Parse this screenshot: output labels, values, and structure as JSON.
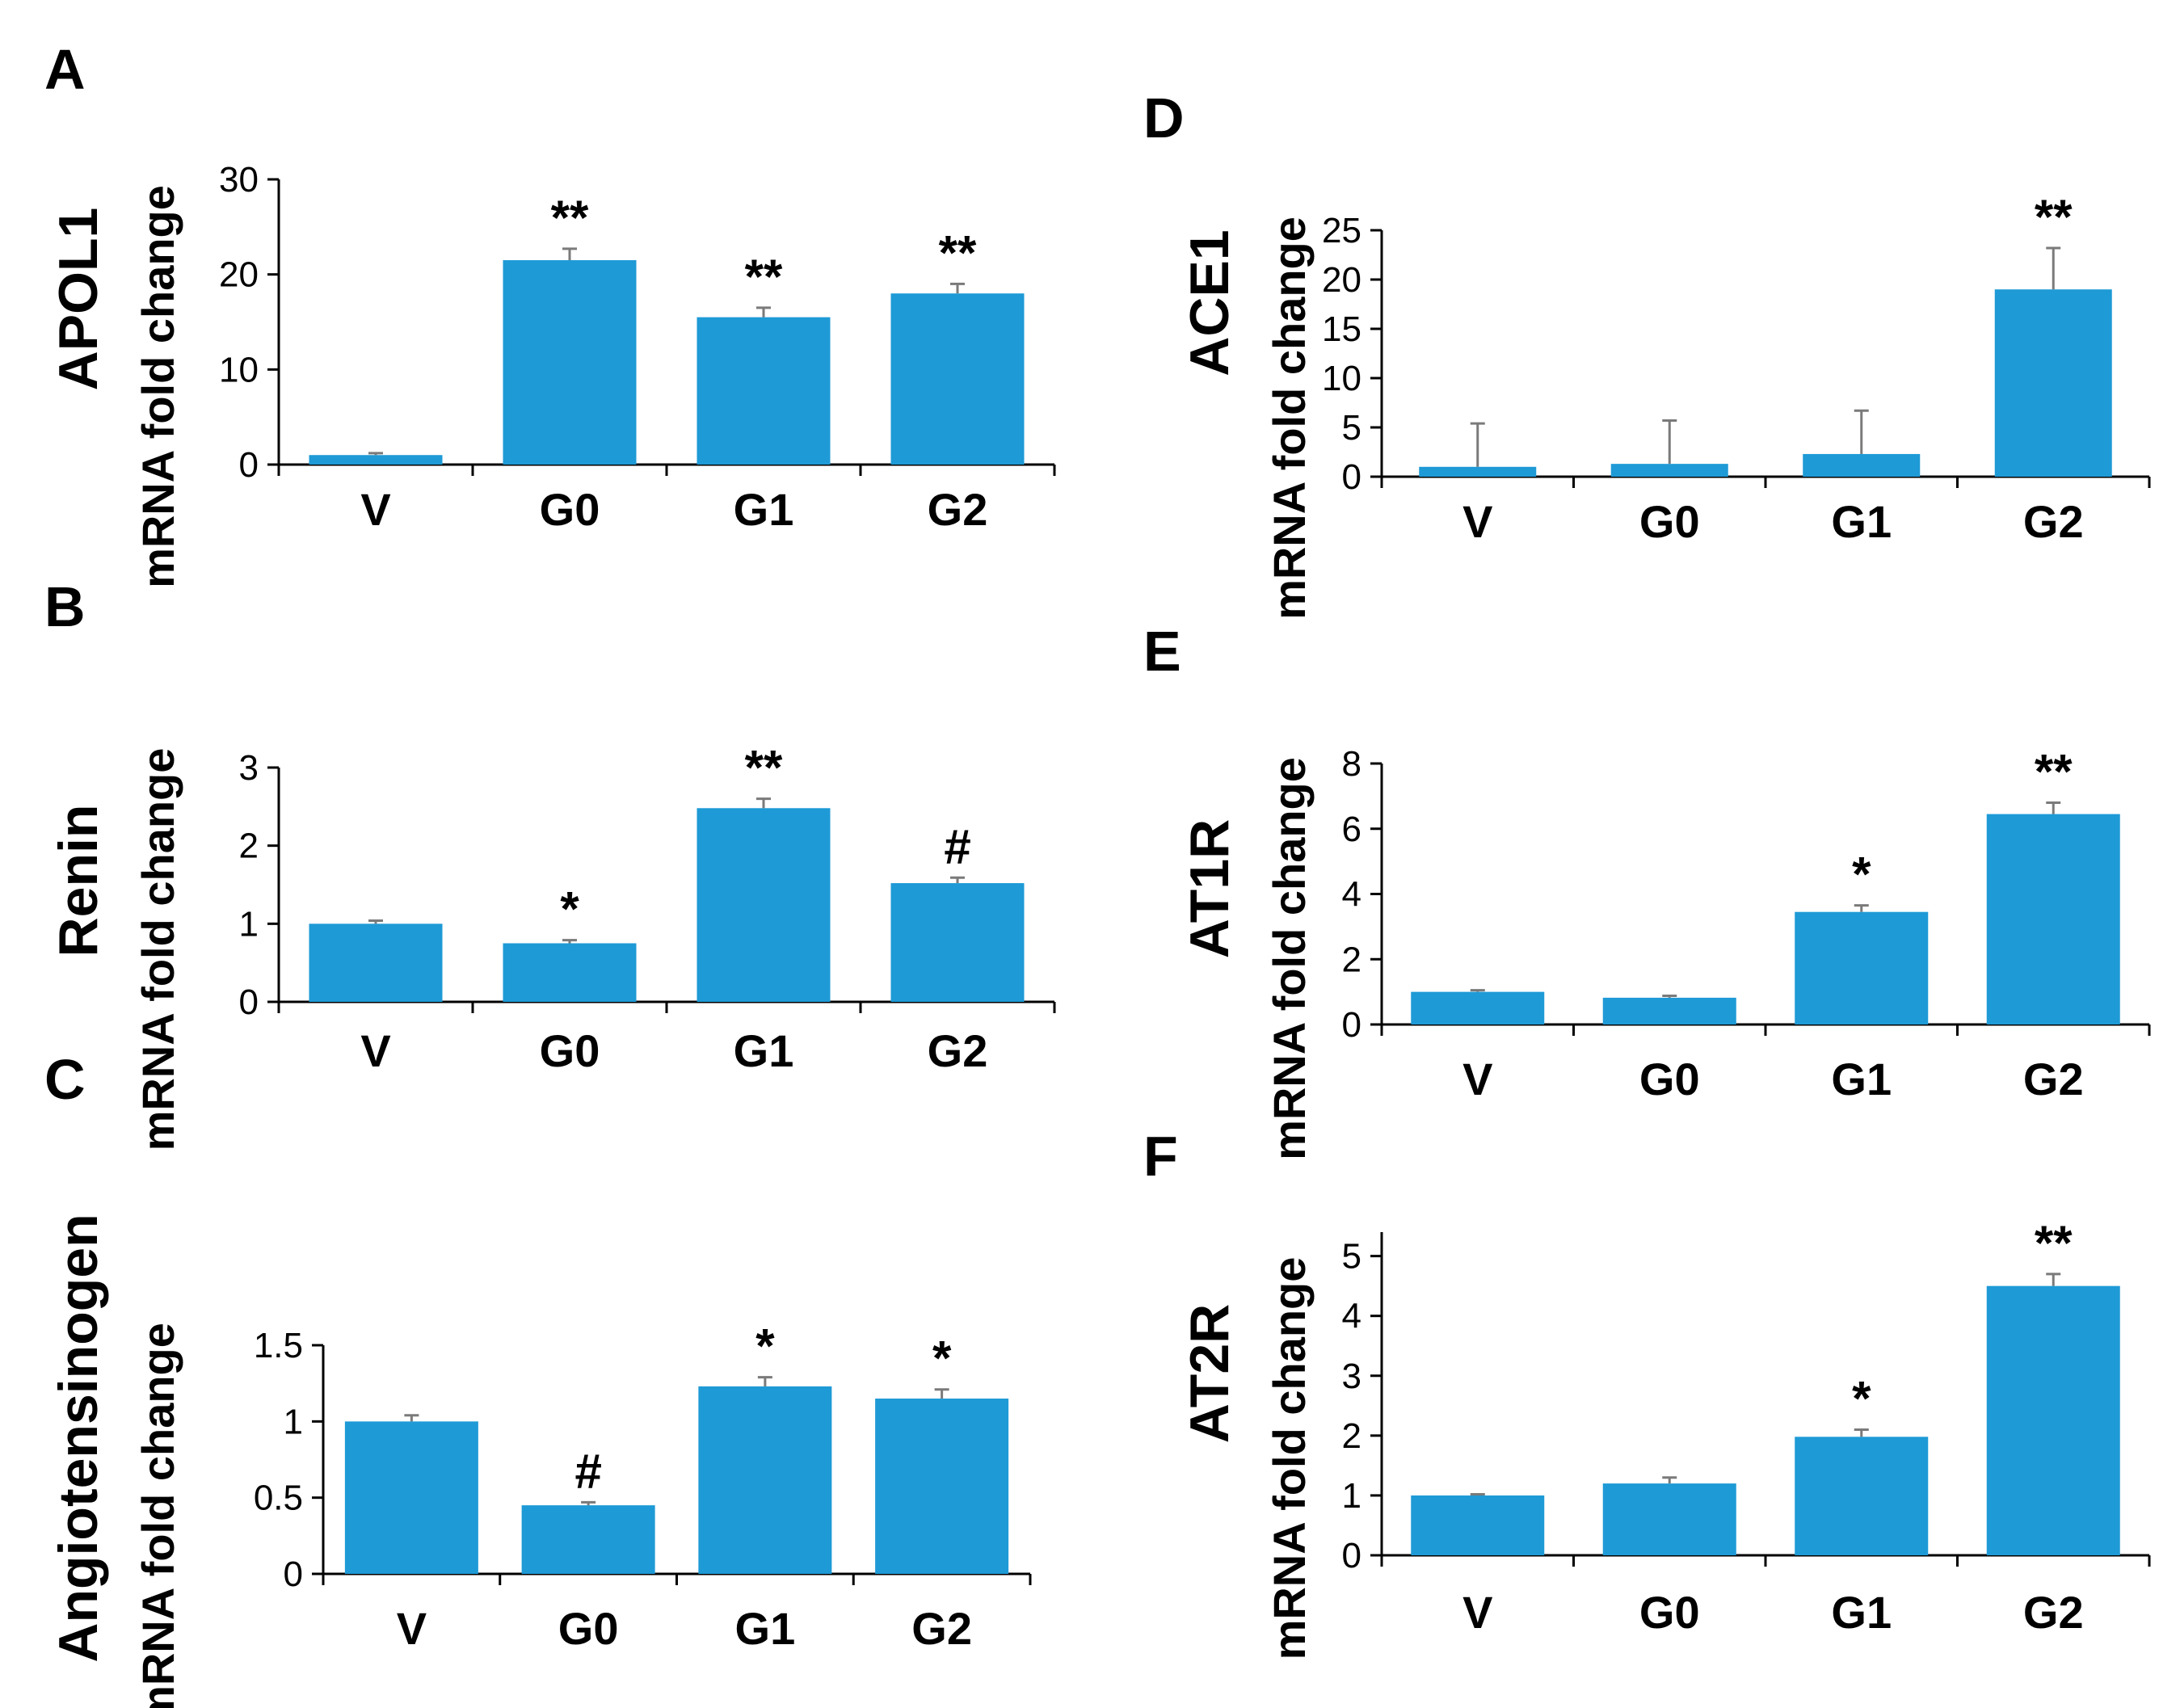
{
  "chart_data": [
    {
      "panel": "A",
      "type": "bar",
      "gene": "APOL1",
      "ylabel": "mRNA fold change",
      "categories": [
        "V",
        "G0",
        "G1",
        "G2"
      ],
      "values": [
        1,
        21.5,
        15.5,
        18
      ],
      "errors": [
        0.2,
        1.2,
        1.0,
        1.0
      ],
      "significance": [
        "",
        "**",
        "**",
        "**"
      ],
      "yticks": [
        0,
        10,
        20,
        30
      ],
      "ylim": [
        0,
        30
      ]
    },
    {
      "panel": "B",
      "type": "bar",
      "gene": "Renin",
      "ylabel": "mRNA fold change",
      "categories": [
        "V",
        "G0",
        "G1",
        "G2"
      ],
      "values": [
        1,
        0.75,
        2.48,
        1.52
      ],
      "errors": [
        0.04,
        0.04,
        0.12,
        0.07
      ],
      "significance": [
        "",
        "*",
        "**",
        "#"
      ],
      "yticks": [
        0,
        1,
        2,
        3
      ],
      "ylim": [
        0,
        3
      ]
    },
    {
      "panel": "C",
      "type": "bar",
      "gene": "Angiotensinogen",
      "ylabel": "mRNA fold change",
      "categories": [
        "V",
        "G0",
        "G1",
        "G2"
      ],
      "values": [
        1,
        0.45,
        1.23,
        1.15
      ],
      "errors": [
        0.04,
        0.02,
        0.06,
        0.06
      ],
      "significance": [
        "",
        "#",
        "*",
        "*"
      ],
      "yticks": [
        "0",
        "0.5",
        "1",
        "1.5"
      ],
      "ytick_values": [
        0,
        0.5,
        1,
        1.5
      ],
      "ylim": [
        0,
        1.5
      ]
    },
    {
      "panel": "D",
      "type": "bar",
      "gene": "ACE1",
      "ylabel": "mRNA fold change",
      "categories": [
        "V",
        "G0",
        "G1",
        "G2"
      ],
      "values": [
        1,
        1.3,
        2.3,
        19
      ],
      "errors": [
        4.4,
        4.4,
        4.4,
        4.2
      ],
      "significance": [
        "",
        "",
        "",
        "**"
      ],
      "yticks": [
        0,
        5,
        10,
        15,
        20,
        25
      ],
      "ylim": [
        0,
        25
      ]
    },
    {
      "panel": "E",
      "type": "bar",
      "gene": "AT1R",
      "ylabel": "mRNA fold change",
      "categories": [
        "V",
        "G0",
        "G1",
        "G2"
      ],
      "values": [
        1,
        0.82,
        3.45,
        6.45
      ],
      "errors": [
        0.05,
        0.06,
        0.2,
        0.35
      ],
      "significance": [
        "",
        "",
        "*",
        "**"
      ],
      "yticks": [
        0,
        2,
        4,
        6,
        8
      ],
      "ylim": [
        0,
        8
      ]
    },
    {
      "panel": "F",
      "type": "bar",
      "gene": "AT2R",
      "ylabel": "mRNA fold change",
      "categories": [
        "V",
        "G0",
        "G1",
        "G2"
      ],
      "values": [
        1,
        1.2,
        1.98,
        4.5
      ],
      "errors": [
        0.02,
        0.1,
        0.12,
        0.2
      ],
      "significance": [
        "",
        "",
        "*",
        "**"
      ],
      "yticks": [
        0,
        1,
        2,
        3,
        4,
        5
      ],
      "ylim": [
        0,
        5.4
      ]
    }
  ],
  "colors": {
    "bar": "#1e9ad6",
    "error": "#7a7a7a",
    "axis": "#000000"
  }
}
